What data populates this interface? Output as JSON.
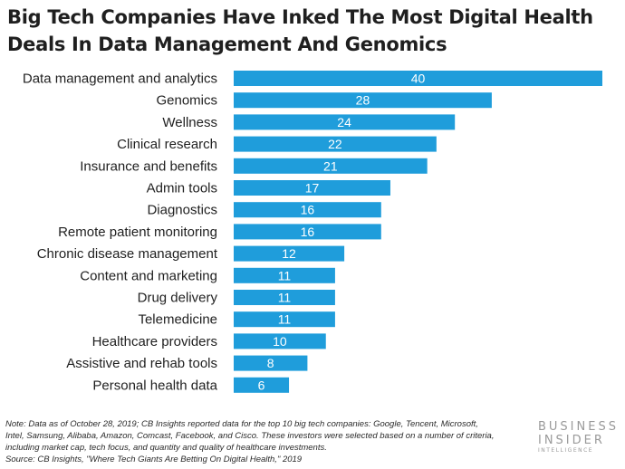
{
  "chart_data": {
    "type": "bar",
    "orientation": "horizontal",
    "title": "Big Tech Companies Have Inked The Most Digital Health Deals In Data Management And Genomics",
    "categories": [
      "Data management and analytics",
      "Genomics",
      "Wellness",
      "Clinical research",
      "Insurance and benefits",
      "Admin tools",
      "Diagnostics",
      "Remote patient monitoring",
      "Chronic disease management",
      "Content and marketing",
      "Drug delivery",
      "Telemedicine",
      "Healthcare providers",
      "Assistive and rehab tools",
      "Personal health data"
    ],
    "values": [
      40,
      28,
      24,
      22,
      21,
      17,
      16,
      16,
      12,
      11,
      11,
      11,
      10,
      8,
      6
    ],
    "xlim": [
      0,
      40
    ],
    "grid": false,
    "legend": "none",
    "bar_color": "#1f9ddb",
    "value_label_color": "#ffffff"
  },
  "footer": {
    "note_lines": [
      "Note: Data as of October 28, 2019; CB Insights reported data for the top 10 big tech companies: Google, Tencent, Microsoft,",
      "Intel, Samsung, Alibaba, Amazon, Comcast, Facebook, and Cisco. These investors were selected based on a number of criteria,",
      "including market cap, tech focus, and quantity and quality of healthcare investments."
    ],
    "source": "Source: CB Insights, \"Where Tech Giants Are Betting On Digital Health,\" 2019"
  },
  "logo": {
    "line1": "BUSINESS",
    "line2": "INSIDER",
    "line3": "INTELLIGENCE",
    "color": "#9a9a9a"
  }
}
